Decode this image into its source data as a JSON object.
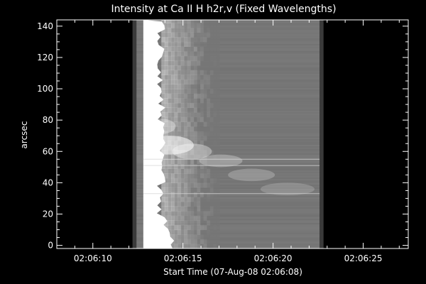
{
  "chart_data": {
    "type": "heatmap",
    "title": "Intensity at Ca II H h2r,v (Fixed Wavelengths)",
    "xlabel": "Start Time (07-Aug-08 02:06:08)",
    "ylabel": "arcsec",
    "x_tick_labels": [
      "02:06:10",
      "02:06:15",
      "02:06:20",
      "02:06:25"
    ],
    "x_tick_values_sec": [
      2,
      7,
      12,
      17
    ],
    "xlim_sec": [
      0,
      19.5
    ],
    "y_ticks": [
      0,
      20,
      40,
      60,
      80,
      100,
      120,
      140
    ],
    "ylim": [
      -2,
      144
    ],
    "data_x_range_sec": [
      4.2,
      14.8
    ],
    "colormap": "grayscale",
    "colors": {
      "background": "#000000",
      "axes": "#ffffff",
      "image_base": "#767676",
      "bright_edge": "#ffffff",
      "dark_border": "#3a3a3a"
    },
    "features": {
      "bright_edge_x_sec": [
        4.8,
        5.8
      ],
      "bright_blob_center": [
        6.3,
        64
      ],
      "bright_streak_y": [
        55,
        51,
        33
      ]
    }
  }
}
